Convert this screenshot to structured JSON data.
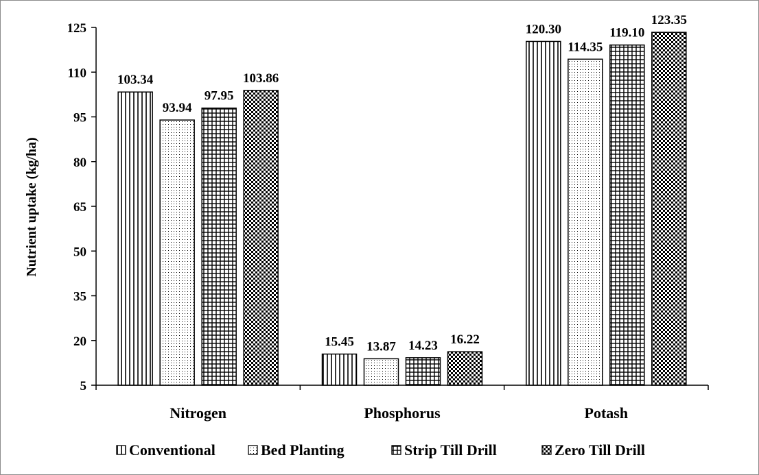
{
  "chart_data": {
    "type": "bar",
    "title": "",
    "xlabel": "",
    "ylabel": "Nutrient uptake (kg/ha)",
    "categories": [
      "Nitrogen",
      "Phosphorus",
      "Potash"
    ],
    "series": [
      {
        "name": "Conventional",
        "pattern": "vertical-lines",
        "values": [
          103.34,
          15.45,
          120.3
        ],
        "labels": [
          "103.34",
          "15.45",
          "120.30"
        ]
      },
      {
        "name": "Bed Planting",
        "pattern": "dots",
        "values": [
          93.94,
          13.87,
          114.35
        ],
        "labels": [
          "93.94",
          "13.87",
          "114.35"
        ]
      },
      {
        "name": "Strip Till Drill",
        "pattern": "grid",
        "values": [
          97.95,
          14.23,
          119.1
        ],
        "labels": [
          "97.95",
          "14.23",
          "119.10"
        ]
      },
      {
        "name": "Zero Till Drill",
        "pattern": "checker",
        "values": [
          103.86,
          16.22,
          123.35
        ],
        "labels": [
          "103.86",
          "16.22",
          "123.35"
        ]
      }
    ],
    "ylim": [
      5,
      125
    ],
    "yticks": [
      "5",
      "20",
      "35",
      "50",
      "65",
      "80",
      "95",
      "110",
      "125"
    ],
    "grid": false,
    "legend": "bottom",
    "colors": {
      "bar_stroke": "#000000",
      "background": "#ffffff",
      "frame": "#8c8c8c"
    }
  }
}
